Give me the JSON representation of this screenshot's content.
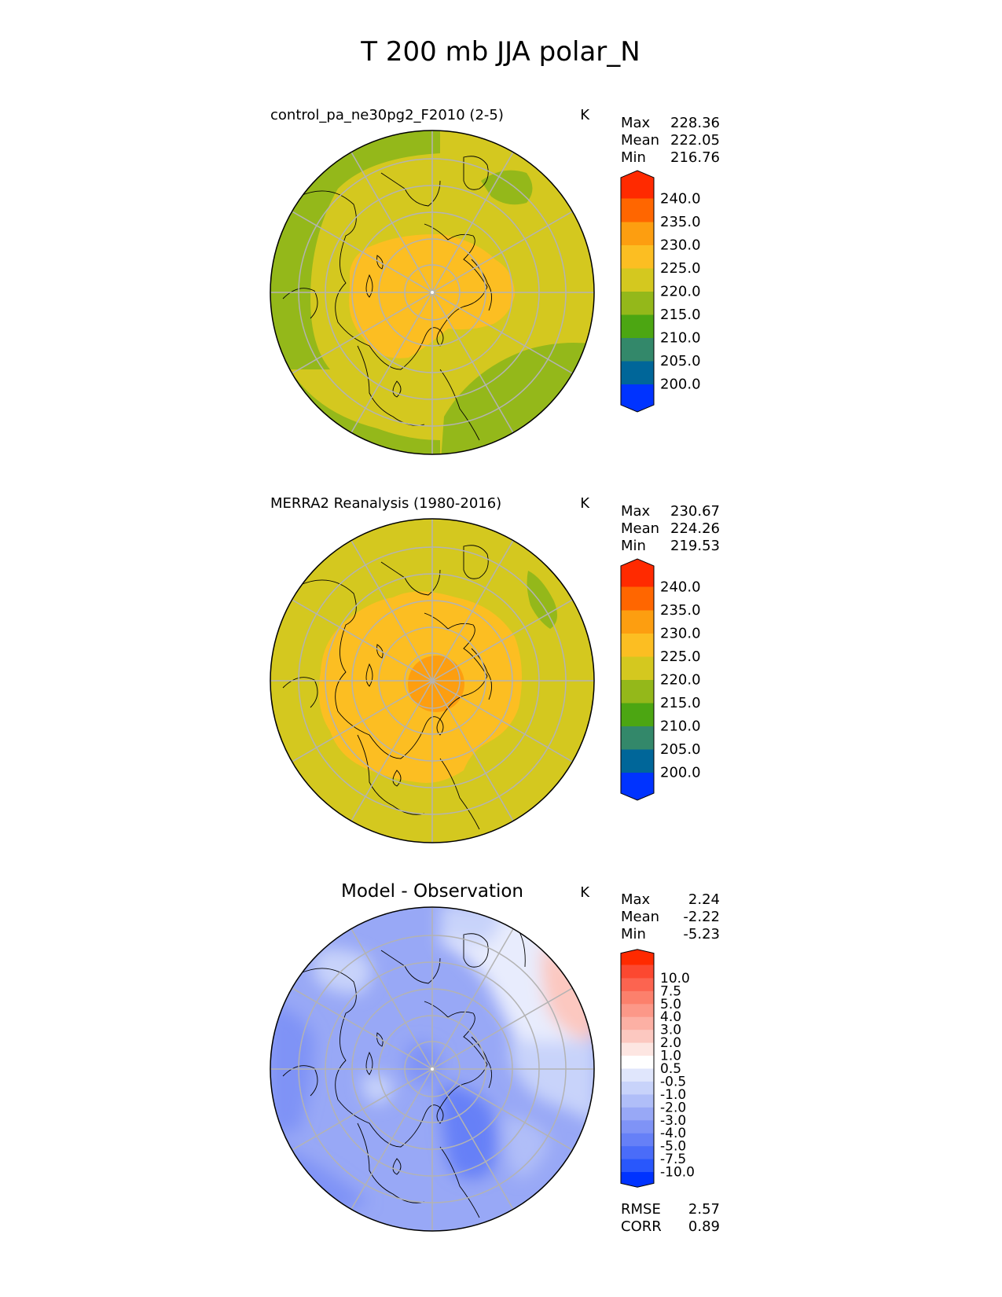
{
  "title": "T 200 mb JJA polar_N",
  "panels": [
    {
      "title": "control_pa_ne30pg2_F2010 (2-5)",
      "units": "K",
      "stats": [
        {
          "label": "Max",
          "value": "228.36"
        },
        {
          "label": "Mean",
          "value": "222.05"
        },
        {
          "label": "Min",
          "value": "216.76"
        }
      ],
      "colorbar": {
        "colors": [
          "#0033ff",
          "#006699",
          "#33886a",
          "#4ca612",
          "#94b81a",
          "#d4c81f",
          "#fcbe22",
          "#fd9e10",
          "#ff6600",
          "#ff2a00"
        ],
        "ticks": [
          "200.0",
          "205.0",
          "210.0",
          "215.0",
          "220.0",
          "225.0",
          "230.0",
          "235.0",
          "240.0"
        ]
      }
    },
    {
      "title": "MERRA2 Reanalysis (1980-2016)",
      "units": "K",
      "stats": [
        {
          "label": "Max",
          "value": "230.67"
        },
        {
          "label": "Mean",
          "value": "224.26"
        },
        {
          "label": "Min",
          "value": "219.53"
        }
      ],
      "colorbar": {
        "colors": [
          "#0033ff",
          "#006699",
          "#33886a",
          "#4ca612",
          "#94b81a",
          "#d4c81f",
          "#fcbe22",
          "#fd9e10",
          "#ff6600",
          "#ff2a00"
        ],
        "ticks": [
          "200.0",
          "205.0",
          "210.0",
          "215.0",
          "220.0",
          "225.0",
          "230.0",
          "235.0",
          "240.0"
        ]
      }
    },
    {
      "title": "Model - Observation",
      "units": "K",
      "stats": [
        {
          "label": "Max",
          "value": "2.24"
        },
        {
          "label": "Mean",
          "value": "-2.22"
        },
        {
          "label": "Min",
          "value": "-5.23"
        }
      ],
      "colorbar": {
        "colors": [
          "#0033ff",
          "#2957fc",
          "#4a6cf9",
          "#6680f7",
          "#7f93f6",
          "#98a8f6",
          "#b0bef8",
          "#c8d3fa",
          "#e0e6fc",
          "#ffffff",
          "#fde6e2",
          "#fcc8c0",
          "#fcb0a4",
          "#fc9888",
          "#fc806c",
          "#fc6450",
          "#fc4830",
          "#ff2a00"
        ],
        "ticks": [
          "-10.0",
          "-7.5",
          "-5.0",
          "-4.0",
          "-3.0",
          "-2.0",
          "-1.0",
          "-0.5",
          "0.5",
          "1.0",
          "2.0",
          "3.0",
          "4.0",
          "5.0",
          "7.5",
          "10.0"
        ]
      },
      "extra_stats": [
        {
          "label": "RMSE",
          "value": "2.57"
        },
        {
          "label": "CORR",
          "value": "0.89"
        }
      ]
    }
  ],
  "chart_data": [
    {
      "type": "heatmap",
      "projection": "north-polar-stereographic",
      "title": "control_pa_ne30pg2_F2010 (2-5)",
      "units": "K",
      "levels": [
        200,
        205,
        210,
        215,
        220,
        225,
        230,
        235,
        240
      ],
      "stats": {
        "max": 228.36,
        "mean": 222.05,
        "min": 216.76
      }
    },
    {
      "type": "heatmap",
      "projection": "north-polar-stereographic",
      "title": "MERRA2 Reanalysis (1980-2016)",
      "units": "K",
      "levels": [
        200,
        205,
        210,
        215,
        220,
        225,
        230,
        235,
        240
      ],
      "stats": {
        "max": 230.67,
        "mean": 224.26,
        "min": 219.53
      }
    },
    {
      "type": "heatmap",
      "projection": "north-polar-stereographic",
      "title": "Model - Observation",
      "units": "K",
      "levels": [
        -10,
        -7.5,
        -5,
        -4,
        -3,
        -2,
        -1,
        -0.5,
        0.5,
        1,
        2,
        3,
        4,
        5,
        7.5,
        10
      ],
      "stats": {
        "max": 2.24,
        "mean": -2.22,
        "min": -5.23,
        "rmse": 2.57,
        "corr": 0.89
      }
    }
  ]
}
